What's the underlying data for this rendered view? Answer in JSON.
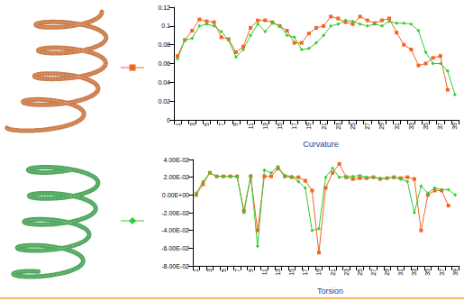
{
  "chart_data": [
    {
      "type": "line",
      "title": "Curvature",
      "categories": [
        "1",
        null,
        "3",
        null,
        "5",
        null,
        "7",
        null,
        "9",
        null,
        "11",
        null,
        "13",
        null,
        "15",
        null,
        "17",
        null,
        "19",
        null,
        "21",
        null,
        "23",
        null,
        "25",
        null,
        "27",
        null,
        "29",
        null,
        "31",
        null,
        "33",
        null,
        "35",
        null,
        "37",
        null,
        "39"
      ],
      "series": [
        {
          "color": "#f26522",
          "marker": "square",
          "line_style": "solid",
          "values": [
            0.068,
            0.085,
            0.095,
            0.107,
            0.105,
            0.104,
            0.088,
            0.086,
            0.072,
            0.078,
            0.098,
            0.106,
            0.106,
            0.104,
            0.1,
            0.095,
            0.082,
            0.082,
            0.092,
            0.098,
            0.1,
            0.11,
            0.108,
            0.104,
            0.102,
            0.11,
            0.106,
            0.103,
            0.106,
            0.108,
            0.093,
            0.08,
            0.075,
            0.058,
            0.06,
            0.066,
            0.068,
            0.032,
            null
          ]
        },
        {
          "color": "#33cc33",
          "marker": "diamond",
          "line_style": "solid",
          "values": [
            0.065,
            0.085,
            0.087,
            0.1,
            0.102,
            0.1,
            0.094,
            0.085,
            0.067,
            0.075,
            0.09,
            0.102,
            0.094,
            0.103,
            0.1,
            0.09,
            0.088,
            0.075,
            0.076,
            0.082,
            0.09,
            0.1,
            0.102,
            0.106,
            0.105,
            0.102,
            0.1,
            0.102,
            0.1,
            0.105,
            0.103,
            0.103,
            0.102,
            0.095,
            0.072,
            0.06,
            0.06,
            0.052,
            0.027
          ]
        }
      ],
      "ylim": [
        0,
        0.12
      ],
      "yticks": [
        0,
        0.02,
        0.04,
        0.06,
        0.08,
        0.1,
        0.12
      ],
      "grid": false
    },
    {
      "type": "line",
      "title": "Torsion",
      "categories": [
        "1",
        null,
        "3",
        null,
        "5",
        null,
        "7",
        null,
        "9",
        null,
        "11",
        null,
        "13",
        null,
        "15",
        null,
        "17",
        null,
        "19",
        null,
        "21",
        null,
        "23",
        null,
        "25",
        null,
        "27",
        null,
        "29",
        null,
        "31",
        null,
        "33",
        null,
        "35",
        null,
        "37",
        null,
        "39"
      ],
      "series": [
        {
          "color": "#f26522",
          "marker": "square",
          "line_style": "solid",
          "values": [
            0.0,
            0.012,
            0.025,
            0.021,
            0.021,
            0.021,
            0.021,
            -0.018,
            0.021,
            -0.04,
            0.021,
            0.021,
            0.03,
            0.021,
            0.02,
            0.02,
            0.016,
            0.005,
            -0.065,
            0.008,
            0.025,
            0.035,
            0.02,
            0.018,
            0.019,
            0.019,
            0.02,
            0.018,
            0.019,
            0.02,
            0.019,
            0.02,
            0.018,
            -0.04,
            0.0,
            0.005,
            0.005,
            -0.012,
            null
          ]
        },
        {
          "color": "#33cc33",
          "marker": "diamond",
          "line_style": "solid",
          "values": [
            0.002,
            0.015,
            0.025,
            0.021,
            0.021,
            0.021,
            0.021,
            -0.02,
            0.022,
            -0.058,
            0.028,
            0.025,
            0.032,
            0.022,
            0.021,
            0.015,
            0.008,
            -0.04,
            -0.038,
            0.02,
            0.03,
            0.02,
            0.021,
            0.021,
            0.022,
            0.02,
            0.02,
            0.019,
            0.019,
            0.02,
            0.018,
            0.015,
            -0.02,
            0.01,
            0.002,
            0.008,
            0.006,
            0.006,
            0.0
          ]
        }
      ],
      "ylim": [
        -0.08,
        0.04
      ],
      "yticks": [
        {
          "value": -0.08,
          "label": "-8.00E-02"
        },
        {
          "value": -0.06,
          "label": "-6.00E-02"
        },
        {
          "value": -0.04,
          "label": "-4.00E-02"
        },
        {
          "value": -0.02,
          "label": "-2.00E-02"
        },
        {
          "value": 0,
          "label": "0.00E+00"
        },
        {
          "value": 0.02,
          "label": "2.00E-02"
        },
        {
          "value": 0.04,
          "label": "4.00E-02"
        }
      ],
      "grid": false
    }
  ]
}
